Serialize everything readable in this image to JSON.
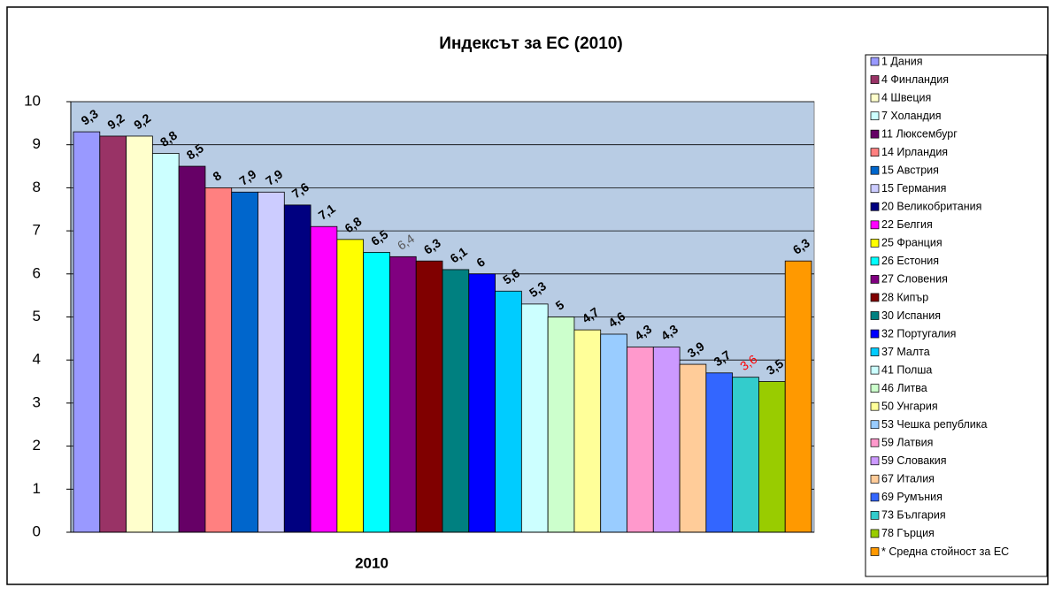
{
  "chart_data": {
    "type": "bar",
    "title": "Индексът за ЕС (2010)",
    "categories": [
      "2010"
    ],
    "ylim": [
      0,
      10
    ],
    "yticks": [
      0,
      1,
      2,
      3,
      4,
      5,
      6,
      7,
      8,
      9,
      10
    ],
    "grid": true,
    "legend": "right",
    "series": [
      {
        "name": "1 Дания",
        "color": "#9999FF",
        "values": [
          9.3
        ],
        "value_labels": [
          "9,3"
        ]
      },
      {
        "name": "4 Финландия",
        "color": "#993366",
        "values": [
          9.2
        ],
        "value_labels": [
          "9,2"
        ]
      },
      {
        "name": "4 Швеция",
        "color": "#FFFFCC",
        "values": [
          9.2
        ],
        "value_labels": [
          "9,2"
        ]
      },
      {
        "name": "7 Холандия",
        "color": "#CCFFFF",
        "values": [
          8.8
        ],
        "value_labels": [
          "8,8"
        ]
      },
      {
        "name": "11 Люксембург",
        "color": "#660066",
        "values": [
          8.5
        ],
        "value_labels": [
          "8,5"
        ]
      },
      {
        "name": "14 Ирландия",
        "color": "#FF8080",
        "values": [
          8
        ],
        "value_labels": [
          "8"
        ]
      },
      {
        "name": "15 Австрия",
        "color": "#0066CC",
        "values": [
          7.9
        ],
        "value_labels": [
          "7,9"
        ]
      },
      {
        "name": "15 Германия",
        "color": "#CCCCFF",
        "values": [
          7.9
        ],
        "value_labels": [
          "7,9"
        ]
      },
      {
        "name": "20 Великобритания",
        "color": "#000080",
        "values": [
          7.6
        ],
        "value_labels": [
          "7,6"
        ]
      },
      {
        "name": "22 Белгия",
        "color": "#FF00FF",
        "values": [
          7.1
        ],
        "value_labels": [
          "7,1"
        ]
      },
      {
        "name": "25 Франция",
        "color": "#FFFF00",
        "values": [
          6.8
        ],
        "value_labels": [
          "6,8"
        ]
      },
      {
        "name": "26 Естония",
        "color": "#00FFFF",
        "values": [
          6.5
        ],
        "value_labels": [
          "6,5"
        ]
      },
      {
        "name": "27 Словения",
        "color": "#800080",
        "values": [
          6.4
        ],
        "value_labels": [
          "6,4"
        ],
        "label_color": "#555555"
      },
      {
        "name": "28 Кипър",
        "color": "#800000",
        "values": [
          6.3
        ],
        "value_labels": [
          "6,3"
        ]
      },
      {
        "name": "30 Испания",
        "color": "#008080",
        "values": [
          6.1
        ],
        "value_labels": [
          "6,1"
        ]
      },
      {
        "name": "32 Португалия",
        "color": "#0000FF",
        "values": [
          6
        ],
        "value_labels": [
          "6"
        ]
      },
      {
        "name": "37 Малта",
        "color": "#00CCFF",
        "values": [
          5.6
        ],
        "value_labels": [
          "5,6"
        ]
      },
      {
        "name": "41 Полша",
        "color": "#CCFFFF",
        "values": [
          5.3
        ],
        "value_labels": [
          "5,3"
        ]
      },
      {
        "name": "46 Литва",
        "color": "#CCFFCC",
        "values": [
          5
        ],
        "value_labels": [
          "5"
        ]
      },
      {
        "name": "50 Унгария",
        "color": "#FFFF99",
        "values": [
          4.7
        ],
        "value_labels": [
          "4,7"
        ]
      },
      {
        "name": "53 Чешка република",
        "color": "#99CCFF",
        "values": [
          4.6
        ],
        "value_labels": [
          "4,6"
        ]
      },
      {
        "name": "59 Латвия",
        "color": "#FF99CC",
        "values": [
          4.3
        ],
        "value_labels": [
          "4,3"
        ]
      },
      {
        "name": "59 Словакия",
        "color": "#CC99FF",
        "values": [
          4.3
        ],
        "value_labels": [
          "4,3"
        ]
      },
      {
        "name": "67 Италия",
        "color": "#FFCC99",
        "values": [
          3.9
        ],
        "value_labels": [
          "3,9"
        ]
      },
      {
        "name": "69 Румъния",
        "color": "#3366FF",
        "values": [
          3.7
        ],
        "value_labels": [
          "3,7"
        ]
      },
      {
        "name": "73 България",
        "color": "#33CCCC",
        "values": [
          3.6
        ],
        "value_labels": [
          "3,6"
        ],
        "label_color": "#FF0000"
      },
      {
        "name": "78 Гърция",
        "color": "#99CC00",
        "values": [
          3.5
        ],
        "value_labels": [
          "3,5"
        ]
      },
      {
        "name": "* Средна стойност за ЕС",
        "color": "#FF9900",
        "values": [
          6.3
        ],
        "value_labels": [
          "6,3"
        ]
      }
    ]
  }
}
